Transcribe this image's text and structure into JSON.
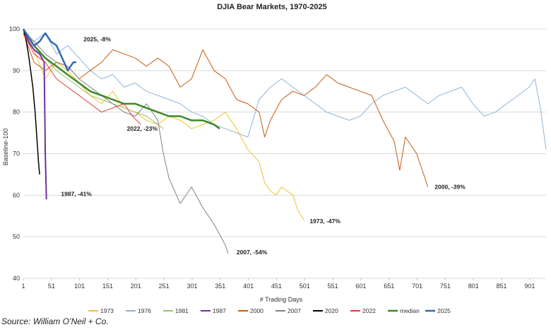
{
  "chart_data": {
    "type": "line",
    "title": "DJIA Bear Markets, 1970-2025",
    "xlabel": "# Trading Days",
    "ylabel": "Baseline-100",
    "xlim": [
      1,
      930
    ],
    "ylim": [
      40,
      100
    ],
    "x_ticks": [
      "1",
      "51",
      "101",
      "151",
      "201",
      "251",
      "301",
      "351",
      "401",
      "451",
      "501",
      "551",
      "601",
      "651",
      "701",
      "751",
      "801",
      "851",
      "901"
    ],
    "y_ticks": [
      "40",
      "50",
      "60",
      "70",
      "80",
      "90",
      "100"
    ],
    "grid": "horizontal",
    "legend_position": "bottom",
    "series": [
      {
        "name": "1973",
        "color": "#f2c12e",
        "width": 1,
        "points": [
          [
            1,
            100
          ],
          [
            20,
            95
          ],
          [
            40,
            88
          ],
          [
            60,
            92
          ],
          [
            80,
            90
          ],
          [
            100,
            87
          ],
          [
            120,
            84
          ],
          [
            140,
            82
          ],
          [
            160,
            85
          ],
          [
            180,
            81
          ],
          [
            200,
            80
          ],
          [
            220,
            78
          ],
          [
            240,
            77
          ],
          [
            260,
            79
          ],
          [
            280,
            78
          ],
          [
            300,
            76
          ],
          [
            320,
            77
          ],
          [
            340,
            78
          ],
          [
            360,
            80
          ],
          [
            380,
            76
          ],
          [
            400,
            71
          ],
          [
            420,
            68
          ],
          [
            430,
            63
          ],
          [
            440,
            61
          ],
          [
            450,
            60
          ],
          [
            460,
            62
          ],
          [
            470,
            61
          ],
          [
            480,
            60
          ],
          [
            490,
            56
          ],
          [
            500,
            54
          ]
        ]
      },
      {
        "name": "1976",
        "color": "#8fb4d8",
        "width": 1,
        "points": [
          [
            1,
            100
          ],
          [
            20,
            97
          ],
          [
            40,
            99
          ],
          [
            60,
            94
          ],
          [
            80,
            96
          ],
          [
            100,
            93
          ],
          [
            120,
            90
          ],
          [
            140,
            88
          ],
          [
            160,
            89
          ],
          [
            180,
            86
          ],
          [
            200,
            87
          ],
          [
            220,
            85
          ],
          [
            240,
            84
          ],
          [
            260,
            83
          ],
          [
            280,
            82
          ],
          [
            300,
            80
          ],
          [
            320,
            79
          ],
          [
            340,
            77
          ],
          [
            360,
            76
          ],
          [
            380,
            75
          ],
          [
            400,
            74
          ],
          [
            420,
            83
          ],
          [
            440,
            86
          ],
          [
            460,
            88
          ],
          [
            480,
            86
          ],
          [
            500,
            84
          ],
          [
            520,
            82
          ],
          [
            540,
            80
          ],
          [
            560,
            79
          ],
          [
            580,
            78
          ],
          [
            600,
            79
          ],
          [
            620,
            82
          ],
          [
            640,
            84
          ],
          [
            660,
            85
          ],
          [
            680,
            86
          ],
          [
            700,
            84
          ],
          [
            720,
            82
          ],
          [
            740,
            84
          ],
          [
            760,
            85
          ],
          [
            780,
            86
          ],
          [
            800,
            82
          ],
          [
            820,
            79
          ],
          [
            840,
            80
          ],
          [
            860,
            82
          ],
          [
            880,
            84
          ],
          [
            900,
            86
          ],
          [
            910,
            88
          ],
          [
            920,
            81
          ],
          [
            930,
            71
          ]
        ]
      },
      {
        "name": "1981",
        "color": "#9bc264",
        "width": 1,
        "points": [
          [
            1,
            100
          ],
          [
            20,
            96
          ],
          [
            40,
            93
          ],
          [
            60,
            90
          ],
          [
            80,
            88
          ],
          [
            100,
            86
          ],
          [
            120,
            84
          ],
          [
            140,
            83
          ],
          [
            160,
            82
          ],
          [
            180,
            81
          ],
          [
            200,
            80
          ],
          [
            220,
            79
          ],
          [
            240,
            77
          ],
          [
            250,
            76
          ]
        ]
      },
      {
        "name": "1987",
        "color": "#7030a0",
        "width": 2,
        "points": [
          [
            1,
            100
          ],
          [
            10,
            97
          ],
          [
            20,
            95
          ],
          [
            30,
            94
          ],
          [
            38,
            92
          ],
          [
            40,
            70
          ],
          [
            42,
            59
          ]
        ]
      },
      {
        "name": "2000",
        "color": "#c55a11",
        "width": 1,
        "points": [
          [
            1,
            99
          ],
          [
            20,
            92
          ],
          [
            40,
            90
          ],
          [
            60,
            92
          ],
          [
            80,
            91
          ],
          [
            100,
            88
          ],
          [
            120,
            90
          ],
          [
            140,
            92
          ],
          [
            160,
            95
          ],
          [
            180,
            94
          ],
          [
            200,
            93
          ],
          [
            220,
            91
          ],
          [
            240,
            93
          ],
          [
            260,
            91
          ],
          [
            280,
            86
          ],
          [
            300,
            88
          ],
          [
            320,
            95
          ],
          [
            340,
            90
          ],
          [
            360,
            88
          ],
          [
            380,
            83
          ],
          [
            400,
            82
          ],
          [
            420,
            80
          ],
          [
            430,
            74
          ],
          [
            440,
            78
          ],
          [
            460,
            83
          ],
          [
            480,
            85
          ],
          [
            500,
            84
          ],
          [
            520,
            86
          ],
          [
            540,
            89
          ],
          [
            560,
            87
          ],
          [
            580,
            86
          ],
          [
            600,
            85
          ],
          [
            620,
            84
          ],
          [
            640,
            78
          ],
          [
            660,
            73
          ],
          [
            670,
            66
          ],
          [
            680,
            74
          ],
          [
            700,
            70
          ],
          [
            710,
            66
          ],
          [
            720,
            62
          ]
        ]
      },
      {
        "name": "2007",
        "color": "#808080",
        "width": 1,
        "points": [
          [
            1,
            99
          ],
          [
            20,
            97
          ],
          [
            40,
            94
          ],
          [
            60,
            92
          ],
          [
            80,
            91
          ],
          [
            100,
            88
          ],
          [
            120,
            86
          ],
          [
            140,
            84
          ],
          [
            160,
            82
          ],
          [
            180,
            80
          ],
          [
            200,
            79
          ],
          [
            220,
            82
          ],
          [
            240,
            78
          ],
          [
            250,
            70
          ],
          [
            260,
            64
          ],
          [
            280,
            58
          ],
          [
            300,
            62
          ],
          [
            320,
            57
          ],
          [
            340,
            53
          ],
          [
            360,
            48
          ],
          [
            365,
            46
          ]
        ]
      },
      {
        "name": "2020",
        "color": "#000000",
        "width": 1.5,
        "points": [
          [
            1,
            100
          ],
          [
            5,
            98
          ],
          [
            10,
            94
          ],
          [
            14,
            90
          ],
          [
            18,
            86
          ],
          [
            22,
            80
          ],
          [
            26,
            72
          ],
          [
            28,
            68
          ],
          [
            30,
            65
          ]
        ]
      },
      {
        "name": "2022",
        "color": "#e03b3b",
        "width": 1,
        "points": [
          [
            1,
            99
          ],
          [
            20,
            94
          ],
          [
            40,
            92
          ],
          [
            60,
            88
          ],
          [
            80,
            86
          ],
          [
            100,
            84
          ],
          [
            120,
            82
          ],
          [
            140,
            80
          ],
          [
            160,
            81
          ],
          [
            180,
            82
          ],
          [
            195,
            79
          ],
          [
            210,
            77
          ]
        ]
      },
      {
        "name": "median",
        "color": "#3a8a25",
        "width": 2.5,
        "points": [
          [
            1,
            100
          ],
          [
            20,
            96
          ],
          [
            40,
            93
          ],
          [
            60,
            91
          ],
          [
            80,
            89
          ],
          [
            100,
            87
          ],
          [
            120,
            85
          ],
          [
            140,
            84
          ],
          [
            160,
            83
          ],
          [
            180,
            82
          ],
          [
            200,
            82
          ],
          [
            220,
            81
          ],
          [
            240,
            80
          ],
          [
            260,
            79
          ],
          [
            280,
            79
          ],
          [
            300,
            78
          ],
          [
            320,
            78
          ],
          [
            340,
            77
          ],
          [
            350,
            76
          ]
        ]
      },
      {
        "name": "2025",
        "color": "#3469b0",
        "width": 2.5,
        "points": [
          [
            1,
            100
          ],
          [
            10,
            98
          ],
          [
            20,
            96
          ],
          [
            30,
            97
          ],
          [
            40,
            99
          ],
          [
            50,
            97
          ],
          [
            60,
            96
          ],
          [
            70,
            93
          ],
          [
            80,
            90
          ],
          [
            90,
            92
          ],
          [
            95,
            92
          ]
        ]
      }
    ],
    "annotations": [
      {
        "text": "2025, -8%",
        "x": 108,
        "y": 97
      },
      {
        "text": "2022, -23%",
        "x": 185,
        "y": 75.5
      },
      {
        "text": "1987, -41%",
        "x": 68,
        "y": 59.8
      },
      {
        "text": "1973, -47%",
        "x": 510,
        "y": 53.3
      },
      {
        "text": "2007, -54%",
        "x": 380,
        "y": 45.8
      },
      {
        "text": "2000, -39%",
        "x": 732,
        "y": 61.5
      }
    ]
  },
  "source": "Source: William O’Neil + Co."
}
